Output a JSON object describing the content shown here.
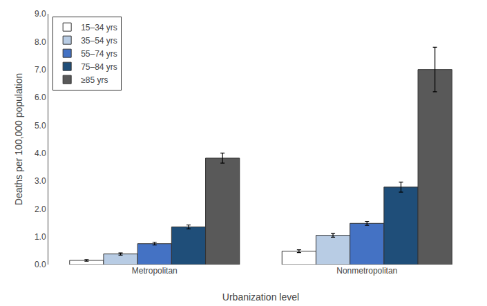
{
  "chart_data": {
    "type": "bar",
    "xlabel": "Urbanization level",
    "ylabel": "Deaths per 100,000 population",
    "categories": [
      "Metropolitan",
      "Nonmetropolitan"
    ],
    "series": [
      {
        "name": "15–34 yrs",
        "color": "#ffffff",
        "values": [
          0.15,
          0.48
        ],
        "errors": [
          0.03,
          0.05
        ]
      },
      {
        "name": "35–54 yrs",
        "color": "#b8cce4",
        "values": [
          0.38,
          1.05
        ],
        "errors": [
          0.04,
          0.07
        ]
      },
      {
        "name": "55–74 yrs",
        "color": "#4472c4",
        "values": [
          0.75,
          1.48
        ],
        "errors": [
          0.05,
          0.07
        ]
      },
      {
        "name": "75–84 yrs",
        "color": "#1f4e79",
        "values": [
          1.35,
          2.78
        ],
        "errors": [
          0.07,
          0.18
        ]
      },
      {
        "name": "≥85 yrs",
        "color": "#595959",
        "values": [
          3.82,
          7.0
        ],
        "errors": [
          0.18,
          0.8
        ]
      }
    ],
    "ylim": [
      0,
      9.0
    ],
    "yticks": [
      {
        "value": 0,
        "label": "0.0"
      },
      {
        "value": 1.0,
        "label": "1.0"
      },
      {
        "value": 2.0,
        "label": "2.0"
      },
      {
        "value": 3.0,
        "label": "3.0"
      },
      {
        "value": 4.0,
        "label": "4.0"
      },
      {
        "value": 5.0,
        "label": "5.0"
      },
      {
        "value": 6.0,
        "label": "6.0"
      },
      {
        "value": 7.0,
        "label": "7.0"
      },
      {
        "value": 8.0,
        "label": "8.0"
      },
      {
        "value": 9.0,
        "label": "9.0"
      }
    ],
    "grid": false,
    "legend": "upper left"
  }
}
